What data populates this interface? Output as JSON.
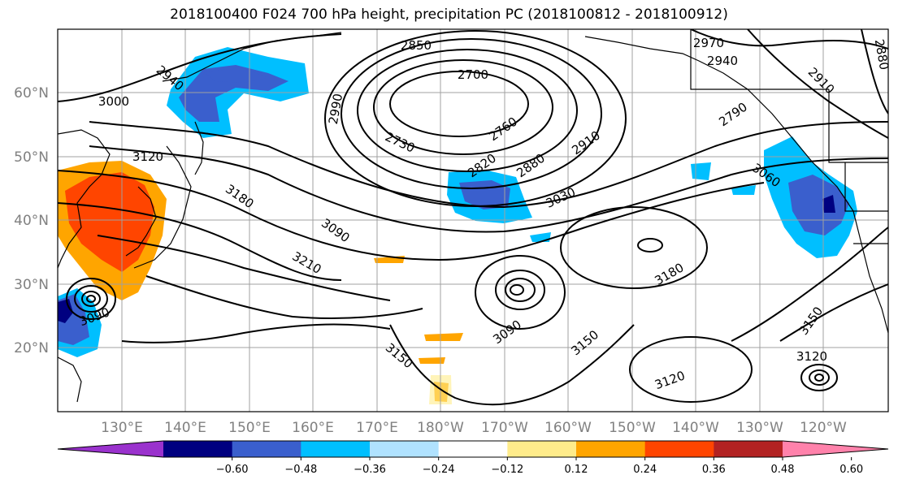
{
  "title": "2018100400 F024 700 hPa height, precipitation PC (2018100812 - 2018100912)",
  "lat_labels": [
    "60°N",
    "50°N",
    "40°N",
    "30°N",
    "20°N"
  ],
  "lon_labels": [
    "130°E",
    "140°E",
    "150°E",
    "160°E",
    "170°E",
    "180°W",
    "170°W",
    "160°W",
    "150°W",
    "140°W",
    "130°W",
    "120°W"
  ],
  "contour_labels": [
    "2850",
    "2700",
    "2970",
    "2940",
    "2880",
    "2910",
    "2940",
    "3000",
    "2990",
    "2730",
    "2760",
    "2910",
    "2790",
    "3120",
    "2820",
    "2880",
    "3060",
    "3180",
    "3030",
    "3090",
    "3210",
    "3180",
    "3090",
    "3150",
    "3150",
    "3090",
    "3120",
    "3120",
    "3150"
  ],
  "colorbar": {
    "tick_labels": [
      "−0.60",
      "−0.48",
      "−0.36",
      "−0.24",
      "−0.12",
      "0.12",
      "0.24",
      "0.36",
      "0.48",
      "0.60"
    ],
    "colors": [
      "#9a32cd",
      "#000080",
      "#3a5fcd",
      "#00bfff",
      "#b0e2ff",
      "#ffffff",
      "#ffec8b",
      "#ffa500",
      "#ff4500",
      "#b22222",
      "#ff82ab"
    ]
  }
}
